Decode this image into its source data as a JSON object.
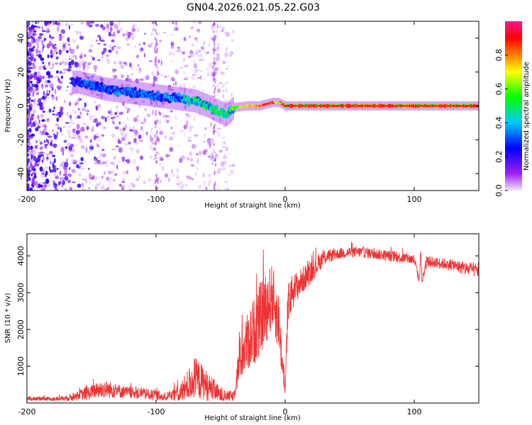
{
  "chart_data": [
    {
      "type": "heatmap",
      "title": "GN04.2026.021.05.22.G03",
      "xlabel": "Height of straight line (km)",
      "ylabel": "Frequency (Hz)",
      "xlim": [
        -200,
        150
      ],
      "ylim": [
        -50,
        50
      ],
      "xticks": [
        -200,
        -100,
        0,
        100
      ],
      "yticks": [
        -40,
        -20,
        0,
        20,
        40
      ],
      "colorbar": {
        "label": "Normalized spectral amplitude",
        "range": [
          0,
          1
        ],
        "ticks": [
          0.0,
          0.2,
          0.4,
          0.6,
          0.8
        ],
        "stops": [
          "#f0e6ff",
          "#a020f0",
          "#0000ff",
          "#00c8ff",
          "#00ff00",
          "#ffff00",
          "#ff8000",
          "#ff0000",
          "#ff1493"
        ]
      },
      "ridge": {
        "x": [
          -160,
          -150,
          -140,
          -130,
          -120,
          -110,
          -100,
          -90,
          -80,
          -70,
          -60,
          -50,
          -45,
          -40,
          -30,
          -20,
          -15,
          -10,
          -5,
          0,
          50,
          100,
          150
        ],
        "freq": [
          14,
          12,
          10,
          9,
          8,
          7,
          6,
          5,
          4,
          3,
          0,
          -4,
          -5,
          -1,
          0,
          0,
          1,
          2,
          2,
          0,
          0,
          0,
          0
        ],
        "amplitude": [
          0.3,
          0.35,
          0.35,
          0.35,
          0.35,
          0.35,
          0.35,
          0.35,
          0.4,
          0.5,
          0.5,
          0.55,
          0.5,
          0.6,
          0.75,
          0.85,
          0.9,
          0.9,
          0.7,
          0.95,
          0.95,
          0.95,
          0.95
        ]
      }
    },
    {
      "type": "line",
      "xlabel": "Height of straight line (km)",
      "ylabel": "SNR (10 * v/v)",
      "xlim": [
        -200,
        150
      ],
      "ylim": [
        0,
        4600
      ],
      "xticks": [
        -200,
        -100,
        0,
        100
      ],
      "yticks": [
        1000,
        2000,
        3000,
        4000
      ],
      "color": "#ee3333",
      "series": [
        {
          "name": "SNR",
          "x": [
            -200,
            -180,
            -170,
            -160,
            -150,
            -140,
            -130,
            -120,
            -110,
            -100,
            -90,
            -80,
            -75,
            -70,
            -65,
            -60,
            -55,
            -50,
            -45,
            -40,
            -35,
            -30,
            -25,
            -20,
            -15,
            -10,
            -5,
            -2,
            0,
            2,
            5,
            10,
            15,
            20,
            25,
            30,
            40,
            50,
            60,
            70,
            80,
            90,
            100,
            104,
            105,
            106,
            110,
            120,
            130,
            140,
            150
          ],
          "y": [
            100,
            110,
            130,
            200,
            300,
            380,
            330,
            280,
            250,
            200,
            160,
            300,
            500,
            650,
            600,
            450,
            350,
            200,
            180,
            200,
            1200,
            1600,
            1900,
            2200,
            2600,
            2900,
            2200,
            1000,
            300,
            2500,
            3000,
            3200,
            3400,
            3550,
            3750,
            3950,
            4050,
            4100,
            4100,
            4050,
            4000,
            3950,
            3900,
            3300,
            4200,
            3300,
            3850,
            3800,
            3750,
            3650,
            3600
          ],
          "noise": [
            60,
            60,
            70,
            150,
            200,
            250,
            200,
            150,
            150,
            150,
            150,
            300,
            450,
            600,
            500,
            400,
            300,
            200,
            150,
            150,
            600,
            800,
            900,
            1000,
            1000,
            900,
            800,
            400,
            100,
            700,
            500,
            400,
            350,
            300,
            250,
            200,
            150,
            150,
            150,
            150,
            150,
            150,
            150,
            100,
            100,
            100,
            150,
            150,
            150,
            200,
            200
          ]
        }
      ]
    }
  ]
}
